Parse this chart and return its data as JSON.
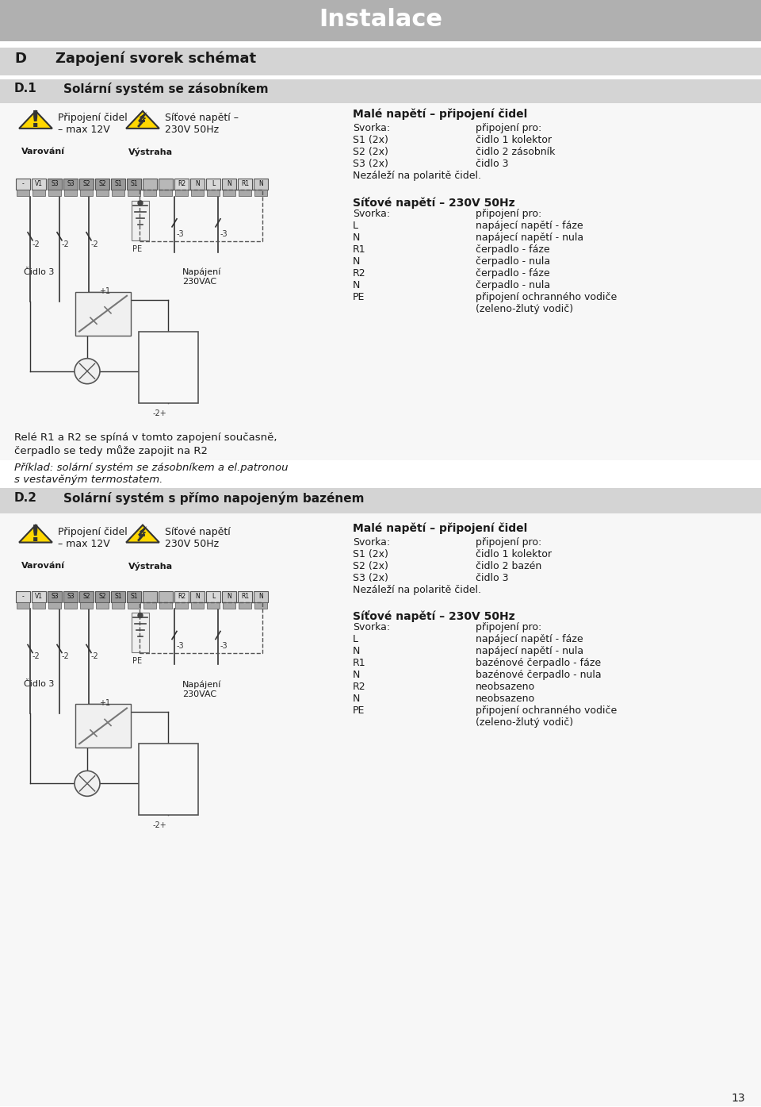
{
  "page_bg": "#ffffff",
  "header_bg": "#b0b0b0",
  "header_text": "Instalace",
  "header_text_color": "#ffffff",
  "section_bg": "#d4d4d4",
  "section_d_text_bold": "D",
  "section_d_text": "Zapojení svorek schémat",
  "section_d1_text_bold": "D.1",
  "section_d1_text": "Solární systém se zásobníkem",
  "section_d2_text_bold": "D.2",
  "section_d2_text": "Solární systém s přímo napojeným bazénem",
  "warn1_label": "Připojení čidel\n– max 12V",
  "warn1_below": "Varování",
  "warn2_label": "Síťové napětí –\n230V 50Hz",
  "warn2_below": "Výstraha",
  "labels_left": [
    "-",
    "V1",
    "S3",
    "S3",
    "S2",
    "S2",
    "S1",
    "S1"
  ],
  "labels_right": [
    "",
    "",
    "R2",
    "N",
    "L",
    "N",
    "R1",
    "N"
  ],
  "cidlo3": "Čidlo 3",
  "napajeni": "Napájení\n230VAC",
  "sv_title1": "Malé napětí – připojení čidel",
  "sv_rows1": [
    [
      "Svorka:",
      "připojení pro:"
    ],
    [
      "S1 (2x)",
      "čidlo 1 kolektor"
    ],
    [
      "S2 (2x)",
      "čidlo 2 zásobník"
    ],
    [
      "S3 (2x)",
      "čidlo 3"
    ],
    [
      "Nezáleží na polaritě čidel.",
      ""
    ]
  ],
  "nv_title1": "Síťové napětí – 230V 50Hz",
  "nv_rows1": [
    [
      "Svorka:",
      "připojení pro:"
    ],
    [
      "L",
      "napájecí napětí - fáze"
    ],
    [
      "N",
      "napájecí napětí - nula"
    ],
    [
      "R1",
      "čerpadlo - fáze"
    ],
    [
      "N",
      "čerpadlo - nula"
    ],
    [
      "R2",
      "čerpadlo - fáze"
    ],
    [
      "N",
      "čerpadlo - nula"
    ],
    [
      "PE",
      "připojení ochranného vodiče"
    ],
    [
      "",
      "(zeleno-žlutý vodič)"
    ]
  ],
  "relay_text1": "Relé R1 a R2 se spíná v tomto zapojení současně,",
  "relay_text2": "čerpadlo se tedy může zapojit na R2",
  "example_text": "Příklad: solární systém se zásobníkem a el.patronou\ns vestavěným termostatem.",
  "sv_title2": "Malé napětí – připojení čidel",
  "sv_rows2": [
    [
      "Svorka:",
      "připojení pro:"
    ],
    [
      "S1 (2x)",
      "čidlo 1 kolektor"
    ],
    [
      "S2 (2x)",
      "čidlo 2 bazén"
    ],
    [
      "S3 (2x)",
      "čidlo 3"
    ],
    [
      "Nezáleží na polaritě čidel.",
      ""
    ]
  ],
  "nv_title2": "Síťové napětí – 230V 50Hz",
  "nv_rows2": [
    [
      "Svorka:",
      "připojení pro:"
    ],
    [
      "L",
      "napájecí napětí - fáze"
    ],
    [
      "N",
      "napájecí napětí - nula"
    ],
    [
      "R1",
      "bazénové čerpadlo - fáze"
    ],
    [
      "N",
      "bazénové čerpadlo - nula"
    ],
    [
      "R2",
      "neobsazeno"
    ],
    [
      "N",
      "neobsazeno"
    ],
    [
      "PE",
      "připojení ochranného vodiče"
    ],
    [
      "",
      "(zeleno-žlutý vodič)"
    ]
  ],
  "page_num": "13",
  "tc": "#1a1a1a"
}
